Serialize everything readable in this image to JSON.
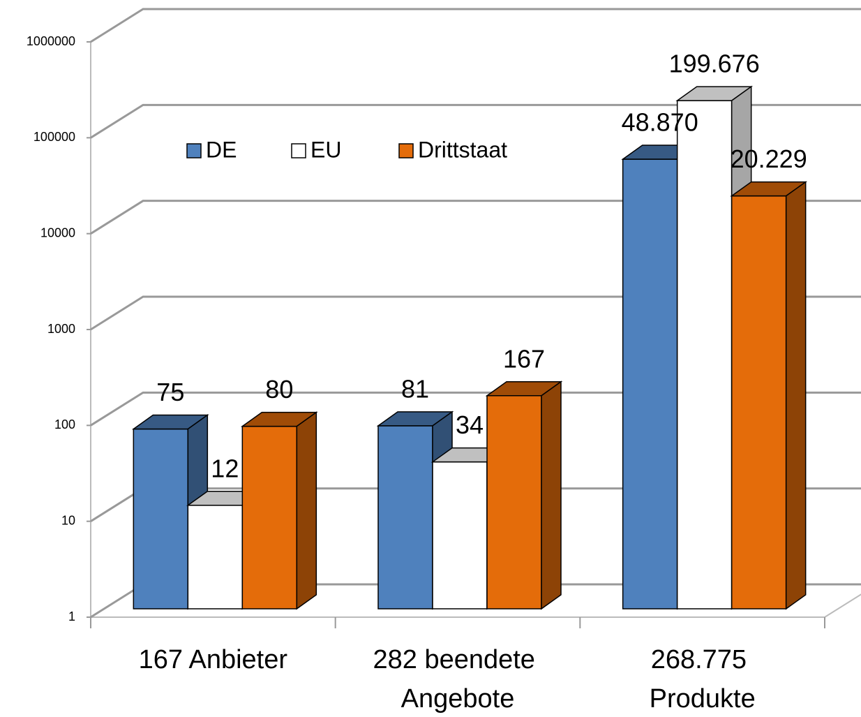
{
  "chart_data": {
    "type": "bar3d",
    "categories": [
      "167 Anbieter",
      "282 beendete Angebote",
      "268.775 Produkte"
    ],
    "series": [
      {
        "name": "DE",
        "color": "#4f81bd",
        "values": [
          75,
          81,
          48870
        ],
        "value_labels": [
          "75",
          "81",
          "48.870"
        ]
      },
      {
        "name": "EU",
        "color": "#ffffff",
        "values": [
          12,
          34,
          199676
        ],
        "value_labels": [
          "12",
          "34",
          "199.676"
        ]
      },
      {
        "name": "Drittstaat",
        "color": "#e46c0a",
        "values": [
          80,
          167,
          20229
        ],
        "value_labels": [
          "80",
          "167",
          "20.229"
        ]
      }
    ],
    "ylim": [
      1,
      1000000
    ],
    "yticks": [
      1,
      10,
      100,
      1000,
      10000,
      100000,
      1000000
    ],
    "log_scale": true,
    "grid": true,
    "legend": "upper left"
  }
}
